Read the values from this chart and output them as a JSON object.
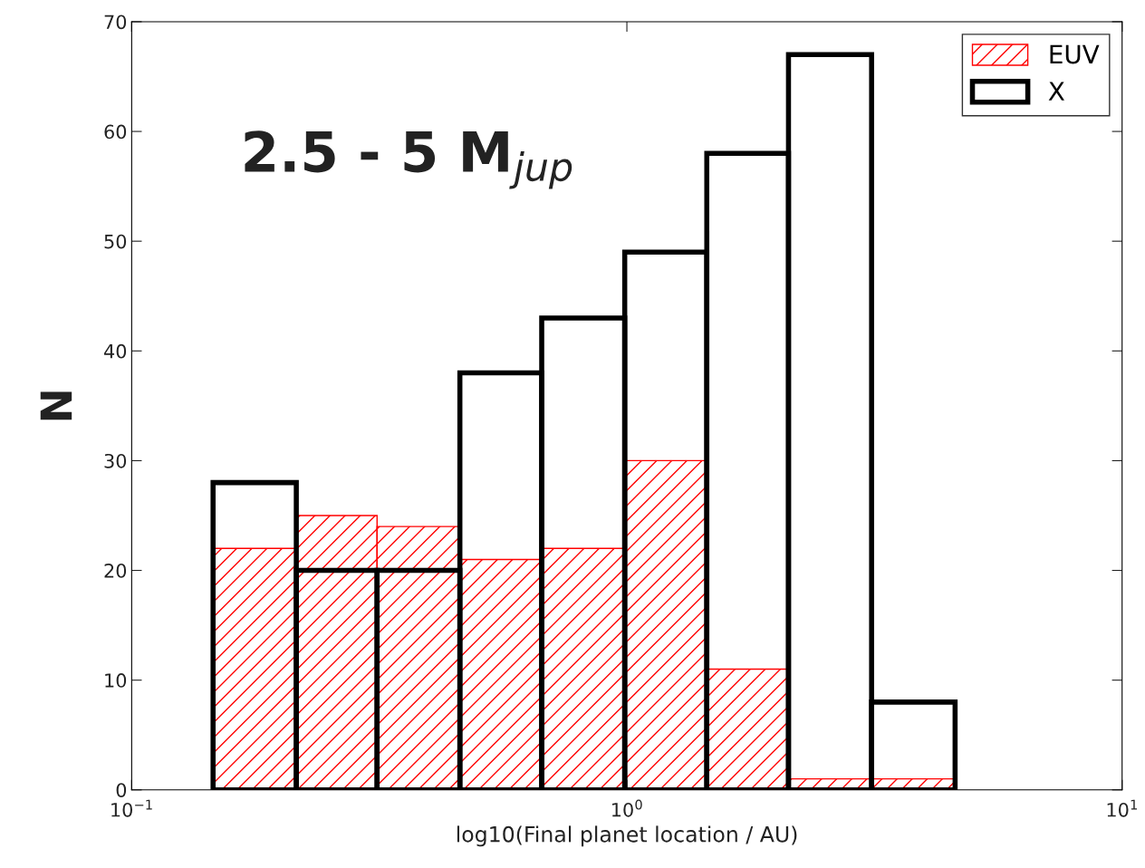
{
  "chart_data": {
    "type": "histogram",
    "xlabel": "log10(Final planet location / AU)",
    "ylabel": "N",
    "annotations": [
      "2.5 - 5 M$_{jup}$"
    ],
    "bins": [
      0.146,
      0.215,
      0.313,
      0.46,
      0.673,
      0.99,
      1.45,
      2.12,
      3.12,
      4.6
    ],
    "series": [
      {
        "name": "EUV",
        "color": "#ff0000",
        "values": [
          22,
          25,
          24,
          21,
          22,
          30,
          11,
          1,
          1
        ]
      },
      {
        "name": "X",
        "color": "#000000",
        "values": [
          28,
          20,
          20,
          38,
          43,
          49,
          58,
          67,
          8
        ]
      }
    ],
    "log": "x",
    "xlim": [
      0.1,
      10
    ],
    "xticks": [
      {
        "value": 0.1,
        "label": "10$^{−1}$"
      },
      {
        "value": 1,
        "label": "10$^{0}$"
      },
      {
        "value": 10,
        "label": "10$^{1}$"
      }
    ],
    "ylim": [
      0,
      70
    ],
    "yticks": [
      0,
      10,
      20,
      30,
      40,
      50,
      60,
      70
    ],
    "legend": "top right",
    "grid": false
  }
}
